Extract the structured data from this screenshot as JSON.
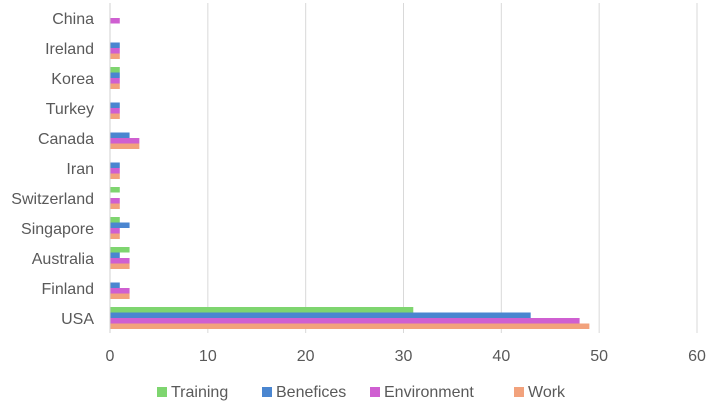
{
  "chart_data": {
    "type": "bar",
    "orientation": "horizontal",
    "categories": [
      "China",
      "Ireland",
      "Korea",
      "Turkey",
      "Canada",
      "Iran",
      "Switzerland",
      "Singapore",
      "Australia",
      "Finland",
      "USA"
    ],
    "series": [
      {
        "name": "Training",
        "color": "#7ed56f",
        "values": [
          0,
          0,
          1,
          0,
          0,
          0,
          1,
          1,
          2,
          0,
          31
        ]
      },
      {
        "name": "Benefices",
        "color": "#4a86d0",
        "values": [
          0,
          1,
          1,
          1,
          2,
          1,
          0,
          2,
          1,
          1,
          43
        ]
      },
      {
        "name": "Environment",
        "color": "#cf5fd1",
        "values": [
          1,
          1,
          1,
          1,
          3,
          1,
          1,
          1,
          2,
          2,
          48
        ]
      },
      {
        "name": "Work",
        "color": "#f2a27c",
        "values": [
          0,
          1,
          1,
          1,
          3,
          1,
          1,
          1,
          2,
          2,
          49
        ]
      }
    ],
    "xlim": [
      0,
      60
    ],
    "xticks": [
      0,
      10,
      20,
      30,
      40,
      50,
      60
    ],
    "grid": true,
    "legend_position": "bottom"
  }
}
